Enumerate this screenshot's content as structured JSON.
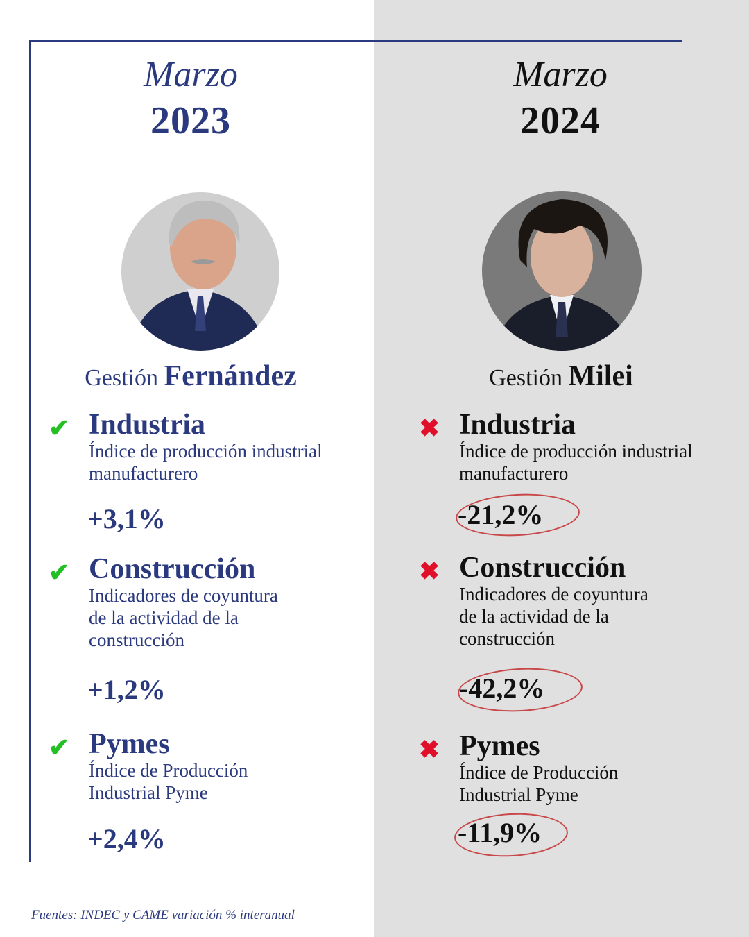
{
  "left": {
    "month": "Marzo",
    "year": "2023",
    "gestion_prefix": "Gestión",
    "gestion_name": "Fernández",
    "status_icon": "check-icon",
    "items": [
      {
        "title": "Industria",
        "sub": [
          "Índice de producción industrial",
          "manufacturero"
        ],
        "value": "+3,1%"
      },
      {
        "title": "Construcción",
        "sub": [
          "Indicadores de coyuntura",
          "de la actividad de la",
          "construcción"
        ],
        "value": "+1,2%"
      },
      {
        "title": "Pymes",
        "sub": [
          "Índice de Producción",
          "Industrial Pyme"
        ],
        "value": "+2,4%"
      }
    ]
  },
  "right": {
    "month": "Marzo",
    "year": "2024",
    "gestion_prefix": "Gestión",
    "gestion_name": "Milei",
    "status_icon": "cross-icon",
    "items": [
      {
        "title": "Industria",
        "sub": [
          "Índice de producción industrial",
          "manufacturero"
        ],
        "value": "-21,2%"
      },
      {
        "title": "Construcción",
        "sub": [
          "Indicadores de coyuntura",
          "de la actividad de la",
          "construcción"
        ],
        "value": "-42,2%"
      },
      {
        "title": "Pymes",
        "sub": [
          "Índice de Producción",
          "Industrial Pyme"
        ],
        "value": "-11,9%"
      }
    ]
  },
  "footer": "Fuentes: INDEC y CAME variación % interanual",
  "colors": {
    "blue": "#2b3a7e",
    "check": "#22c022",
    "cross": "#e0102a",
    "right_bg": "#e0e0e0"
  }
}
